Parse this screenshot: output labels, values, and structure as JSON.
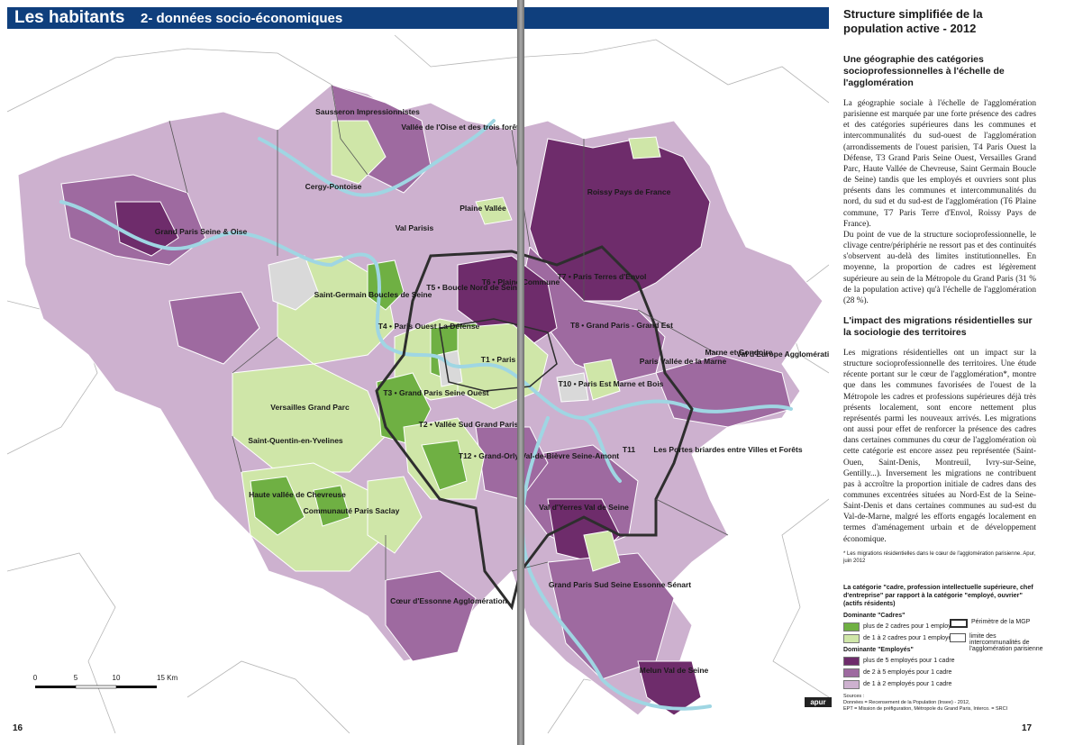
{
  "header": {
    "title": "Les habitants",
    "subtitle": "2- données socio-économiques"
  },
  "page_numbers": {
    "left": "16",
    "right": "17"
  },
  "map": {
    "colors": {
      "cadres_plus2": "#6fb043",
      "cadres_1to2": "#cfe6a8",
      "employes_plus5": "#6e2c6b",
      "employes_2to5": "#9e6aa0",
      "employes_1to2": "#cdb1cf",
      "nodata": "#d9d9d9",
      "water": "#9fd6e3",
      "border": "#3a3a3a"
    },
    "labels": [
      "Grand Paris Seine & Oise",
      "Sausseron Impressionnistes",
      "Vallée de l'Oise et des trois forêts",
      "Cergy-Pontoise",
      "Val Parisis",
      "Plaine Vallée",
      "Roissy Pays de France",
      "Saint-Germain Boucles de Seine",
      "T5 • Boucle Nord de Seine",
      "T6 • Plaine Commune",
      "T7 • Paris Terres d'Envol",
      "T4 • Paris Ouest La Défense",
      "T8 • Grand Paris - Grand Est",
      "T1 • Paris",
      "T3 • Grand Paris Seine Ouest",
      "T10 • Paris Est Marne et Bois",
      "Paris Vallée de la Marne",
      "Marne et Gondoire",
      "Val d'Europe Agglomération",
      "Versailles Grand Parc",
      "T2 • Vallée Sud Grand Paris",
      "Saint-Quentin-en-Yvelines",
      "T12 • Grand-Orly Val-de-Bièvre Seine-Amont",
      "T11",
      "Les Portes briardes entre Villes et Forêts",
      "Haute vallée de Chevreuse",
      "Communauté Paris Saclay",
      "Val d'Yerres Val de Seine",
      "Grand Paris Sud Seine Essonne Sénart",
      "Cœur d'Essonne Agglomération",
      "Melun Val de Seine"
    ],
    "scale": {
      "ticks": [
        "0",
        "5",
        "10",
        "15 Km"
      ]
    }
  },
  "text": {
    "title": "Structure simplifiée de la population active - 2012",
    "section1_title": "Une géographie des catégories socioprofessionnelles à l'échelle de l'agglomération",
    "section1_p1": "La géographie sociale à l'échelle de l'agglomération parisienne est marquée par une forte présence des cadres et des catégories supérieures dans les communes et intercommunalités du sud-ouest de l'agglomération (arrondissements de l'ouest parisien, T4 Paris Ouest la Défense, T3 Grand Paris Seine Ouest, Versailles Grand Parc, Haute Vallée de Chevreuse, Saint Germain Boucle de Seine) tandis que les employés et ouvriers sont plus présents dans les communes et intercommunalités du nord, du sud et du sud-est de l'agglomération (T6 Plaine commune, T7 Paris Terre d'Envol, Roissy Pays de France).",
    "section1_p2": "Du point de vue de la structure socioprofessionnelle, le clivage centre/périphérie ne ressort pas et des continuités s'observent au-delà des limites institutionnelles. En moyenne, la proportion de cadres est légèrement supérieure au sein de la Métropole du Grand Paris (31 % de la population active) qu'à l'échelle de l'agglomération (28 %).",
    "section2_title": "L'impact des migrations résidentielles sur la sociologie des territoires",
    "section2_p1": "Les migrations résidentielles ont un impact sur la structure socioprofessionnelle des territoires. Une étude récente portant sur le cœur de l'agglomération*, montre que dans les communes favorisées de l'ouest de la Métropole les cadres et professions supérieures déjà très présents localement, sont encore nettement plus représentés parmi les nouveaux arrivés. Les migrations ont aussi pour effet de renforcer la présence des cadres dans certaines communes du cœur de l'agglomération où cette catégorie est encore assez peu représentée (Saint-Ouen, Saint-Denis, Montreuil, Ivry-sur-Seine, Gentilly...). Inversement les migrations ne contribuent pas à accroître la proportion initiale de cadres dans des communes excentrées situées au Nord-Est de la Seine-Saint-Denis et dans certaines communes au sud-est du Val-de-Marne, malgré les efforts engagés localement en termes d'aménagement urbain et de développement économique.",
    "footnote": "* Les migrations résidentielles dans le cœur de l'agglomération parisienne. Apur, juin 2012"
  },
  "legend": {
    "title": "La catégorie \"cadre, profession intellectuelle supérieure, chef d'entreprise\" par rapport à la catégorie \"employé, ouvrier\" (actifs résidents)",
    "cadres_head": "Dominante \"Cadres\"",
    "cadres_plus2": "plus de 2 cadres pour 1 employé",
    "cadres_1to2": "de 1 à 2 cadres pour 1 employé",
    "employes_head": "Dominante \"Employés\"",
    "employes_plus5": "plus de 5 employés pour 1 cadre",
    "employes_2to5": "de 2 à 5 employés pour 1 cadre",
    "employes_1to2": "de 1 à 2 employés pour 1 cadre",
    "mgp": "Périmètre de la MGP",
    "interco": "limite des intercommunalités de l'agglomération parisienne",
    "sources_head": "Sources :",
    "sources_1": "Données = Recensement de la Population (Insee) - 2012,",
    "sources_2": "EPT = Mission de préfiguration, Métropole du Grand Paris, Interco. = SRCI",
    "logo": "apur"
  }
}
